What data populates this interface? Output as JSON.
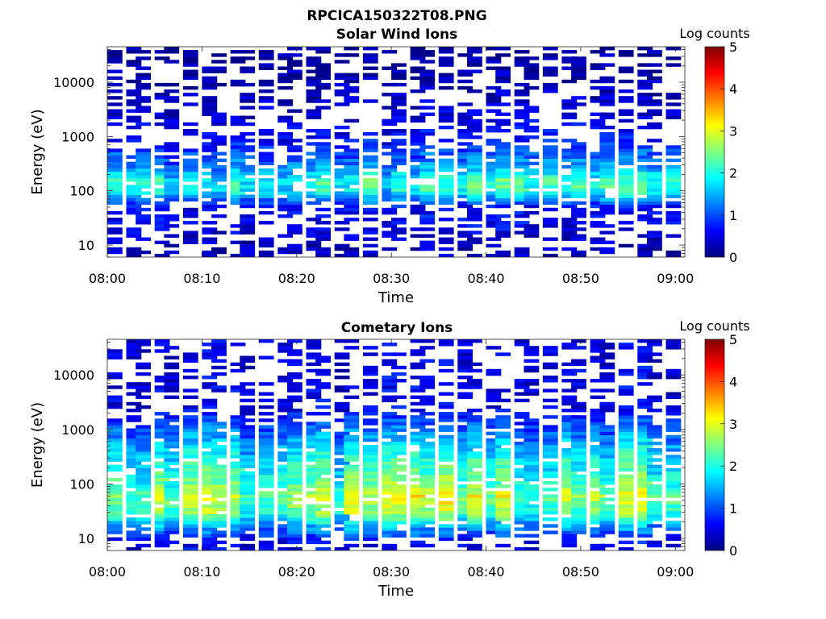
{
  "figure": {
    "title": "RPCICA150322T08.PNG"
  },
  "colorscale": {
    "stops": [
      "#00007f",
      "#0000ff",
      "#007fff",
      "#00ffff",
      "#7fff7f",
      "#ffff00",
      "#ff7f00",
      "#ff0000",
      "#7f0000"
    ]
  },
  "chart_data": [
    {
      "type": "heatmap",
      "title": "Solar Wind Ions",
      "xlabel": "Time",
      "ylabel": "Energy (eV)",
      "yscale": "log",
      "xlim": [
        "08:00",
        "09:01"
      ],
      "ylim": [
        6,
        45000
      ],
      "xticks": [
        "08:00",
        "08:10",
        "08:20",
        "08:30",
        "08:40",
        "08:50",
        "09:00"
      ],
      "yticks": [
        "10",
        "100",
        "1000",
        "10000"
      ],
      "colorbar": {
        "label": "Log counts",
        "range": [
          0,
          5
        ],
        "ticks": [
          "0",
          "1",
          "2",
          "3",
          "4",
          "5"
        ]
      },
      "time_columns": [
        "08:00",
        "08:02",
        "08:03",
        "08:05",
        "08:06",
        "08:08",
        "08:10",
        "08:11",
        "08:13",
        "08:14",
        "08:16",
        "08:18",
        "08:19",
        "08:21",
        "08:22",
        "08:24",
        "08:25",
        "08:27",
        "08:29",
        "08:30",
        "08:32",
        "08:33",
        "08:35",
        "08:37",
        "08:38",
        "08:40",
        "08:41",
        "08:43",
        "08:44",
        "08:46",
        "08:48",
        "08:49",
        "08:51",
        "08:52",
        "08:54",
        "08:56",
        "08:57",
        "08:59"
      ],
      "energy_profile": [
        {
          "energy_ev": 10,
          "log_counts": 0.3
        },
        {
          "energy_ev": 20,
          "log_counts": 0.5
        },
        {
          "energy_ev": 50,
          "log_counts": 0.6
        },
        {
          "energy_ev": 100,
          "log_counts": 1.9
        },
        {
          "energy_ev": 150,
          "log_counts": 2.0
        },
        {
          "energy_ev": 300,
          "log_counts": 1.2
        },
        {
          "energy_ev": 1000,
          "log_counts": 0.6
        },
        {
          "energy_ev": 3000,
          "log_counts": 0.4
        },
        {
          "energy_ev": 10000,
          "log_counts": 0.2
        },
        {
          "energy_ev": 40000,
          "log_counts": 0.1
        }
      ]
    },
    {
      "type": "heatmap",
      "title": "Cometary Ions",
      "xlabel": "Time",
      "ylabel": "Energy (eV)",
      "yscale": "log",
      "xlim": [
        "08:00",
        "09:01"
      ],
      "ylim": [
        6,
        45000
      ],
      "xticks": [
        "08:00",
        "08:10",
        "08:20",
        "08:30",
        "08:40",
        "08:50",
        "09:00"
      ],
      "yticks": [
        "10",
        "100",
        "1000",
        "10000"
      ],
      "colorbar": {
        "label": "Log counts",
        "range": [
          0,
          5
        ],
        "ticks": [
          "0",
          "1",
          "2",
          "3",
          "4",
          "5"
        ]
      },
      "time_columns": [
        "08:00",
        "08:02",
        "08:03",
        "08:05",
        "08:06",
        "08:08",
        "08:10",
        "08:11",
        "08:13",
        "08:14",
        "08:16",
        "08:18",
        "08:19",
        "08:21",
        "08:22",
        "08:24",
        "08:25",
        "08:27",
        "08:29",
        "08:30",
        "08:32",
        "08:33",
        "08:35",
        "08:37",
        "08:38",
        "08:40",
        "08:41",
        "08:43",
        "08:44",
        "08:46",
        "08:48",
        "08:49",
        "08:51",
        "08:52",
        "08:54",
        "08:56",
        "08:57",
        "08:59"
      ],
      "energy_profile": [
        {
          "energy_ev": 8,
          "log_counts": 0.5
        },
        {
          "energy_ev": 15,
          "log_counts": 1.2
        },
        {
          "energy_ev": 30,
          "log_counts": 2.3
        },
        {
          "energy_ev": 60,
          "log_counts": 2.6
        },
        {
          "energy_ev": 100,
          "log_counts": 2.2
        },
        {
          "energy_ev": 300,
          "log_counts": 1.8
        },
        {
          "energy_ev": 1000,
          "log_counts": 1.1
        },
        {
          "energy_ev": 2500,
          "log_counts": 0.5
        }
      ]
    }
  ]
}
